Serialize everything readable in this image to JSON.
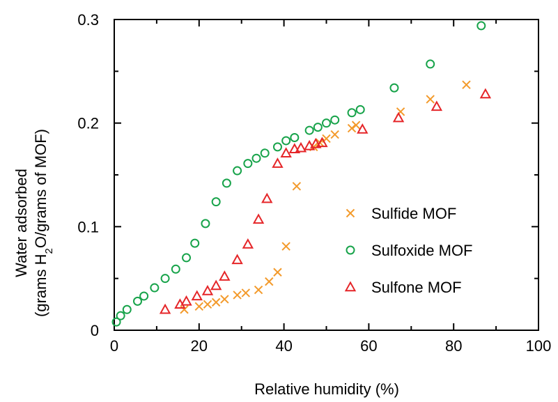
{
  "chart_data": {
    "type": "scatter",
    "title": "",
    "xlabel": "Relative humidity (%)",
    "ylabel_line1": "Water adsorbed",
    "ylabel_line2_parts": [
      "(grams H",
      "2",
      "O/grams of MOF)"
    ],
    "xlim": [
      0,
      100
    ],
    "ylim": [
      0,
      0.3
    ],
    "xticks": [
      0,
      20,
      40,
      60,
      80,
      100
    ],
    "xtick_labels": [
      "0",
      "20",
      "40",
      "60",
      "80",
      "100"
    ],
    "yticks": [
      0,
      0.1,
      0.2,
      0.3
    ],
    "ytick_labels": [
      "0",
      "0.1",
      "0.2",
      "0.3"
    ],
    "grid": false,
    "legend_position": "right-center",
    "series": [
      {
        "name": "Sulfide MOF",
        "marker": "x",
        "color": "#F39A2B",
        "x": [
          16.5,
          20,
          22,
          24,
          26,
          29,
          31,
          34,
          36.5,
          38.5,
          40.5,
          43,
          47,
          48.5,
          50,
          52,
          56,
          57,
          67.5,
          74.5,
          83
        ],
        "y": [
          0.02,
          0.023,
          0.025,
          0.027,
          0.03,
          0.034,
          0.036,
          0.039,
          0.047,
          0.056,
          0.081,
          0.139,
          0.177,
          0.181,
          0.185,
          0.189,
          0.195,
          0.198,
          0.211,
          0.223,
          0.237
        ]
      },
      {
        "name": "Sulfoxide MOF",
        "marker": "o",
        "color": "#17A34A",
        "x": [
          0.5,
          1.5,
          3,
          5.5,
          7,
          9.5,
          12,
          14.5,
          17,
          19,
          21.5,
          24,
          26.5,
          29,
          31.5,
          33.5,
          35.5,
          38.5,
          40.5,
          42.5,
          46,
          48,
          50,
          52,
          56,
          58,
          66,
          74.5,
          86.5
        ],
        "y": [
          0.008,
          0.014,
          0.02,
          0.028,
          0.033,
          0.041,
          0.05,
          0.059,
          0.07,
          0.084,
          0.103,
          0.124,
          0.142,
          0.154,
          0.161,
          0.166,
          0.171,
          0.177,
          0.183,
          0.186,
          0.193,
          0.196,
          0.2,
          0.203,
          0.21,
          0.213,
          0.234,
          0.257,
          0.294
        ]
      },
      {
        "name": "Sulfone MOF",
        "marker": "triangle",
        "color": "#E52528",
        "x": [
          12,
          15.5,
          17,
          19.5,
          22,
          24,
          26,
          29,
          31.5,
          34,
          36,
          38.5,
          40.5,
          42.5,
          44,
          46,
          47.5,
          49,
          58.5,
          67,
          76,
          87.5
        ],
        "y": [
          0.02,
          0.025,
          0.028,
          0.033,
          0.038,
          0.043,
          0.052,
          0.068,
          0.083,
          0.107,
          0.127,
          0.161,
          0.171,
          0.175,
          0.176,
          0.178,
          0.18,
          0.181,
          0.194,
          0.205,
          0.216,
          0.228
        ]
      }
    ]
  }
}
